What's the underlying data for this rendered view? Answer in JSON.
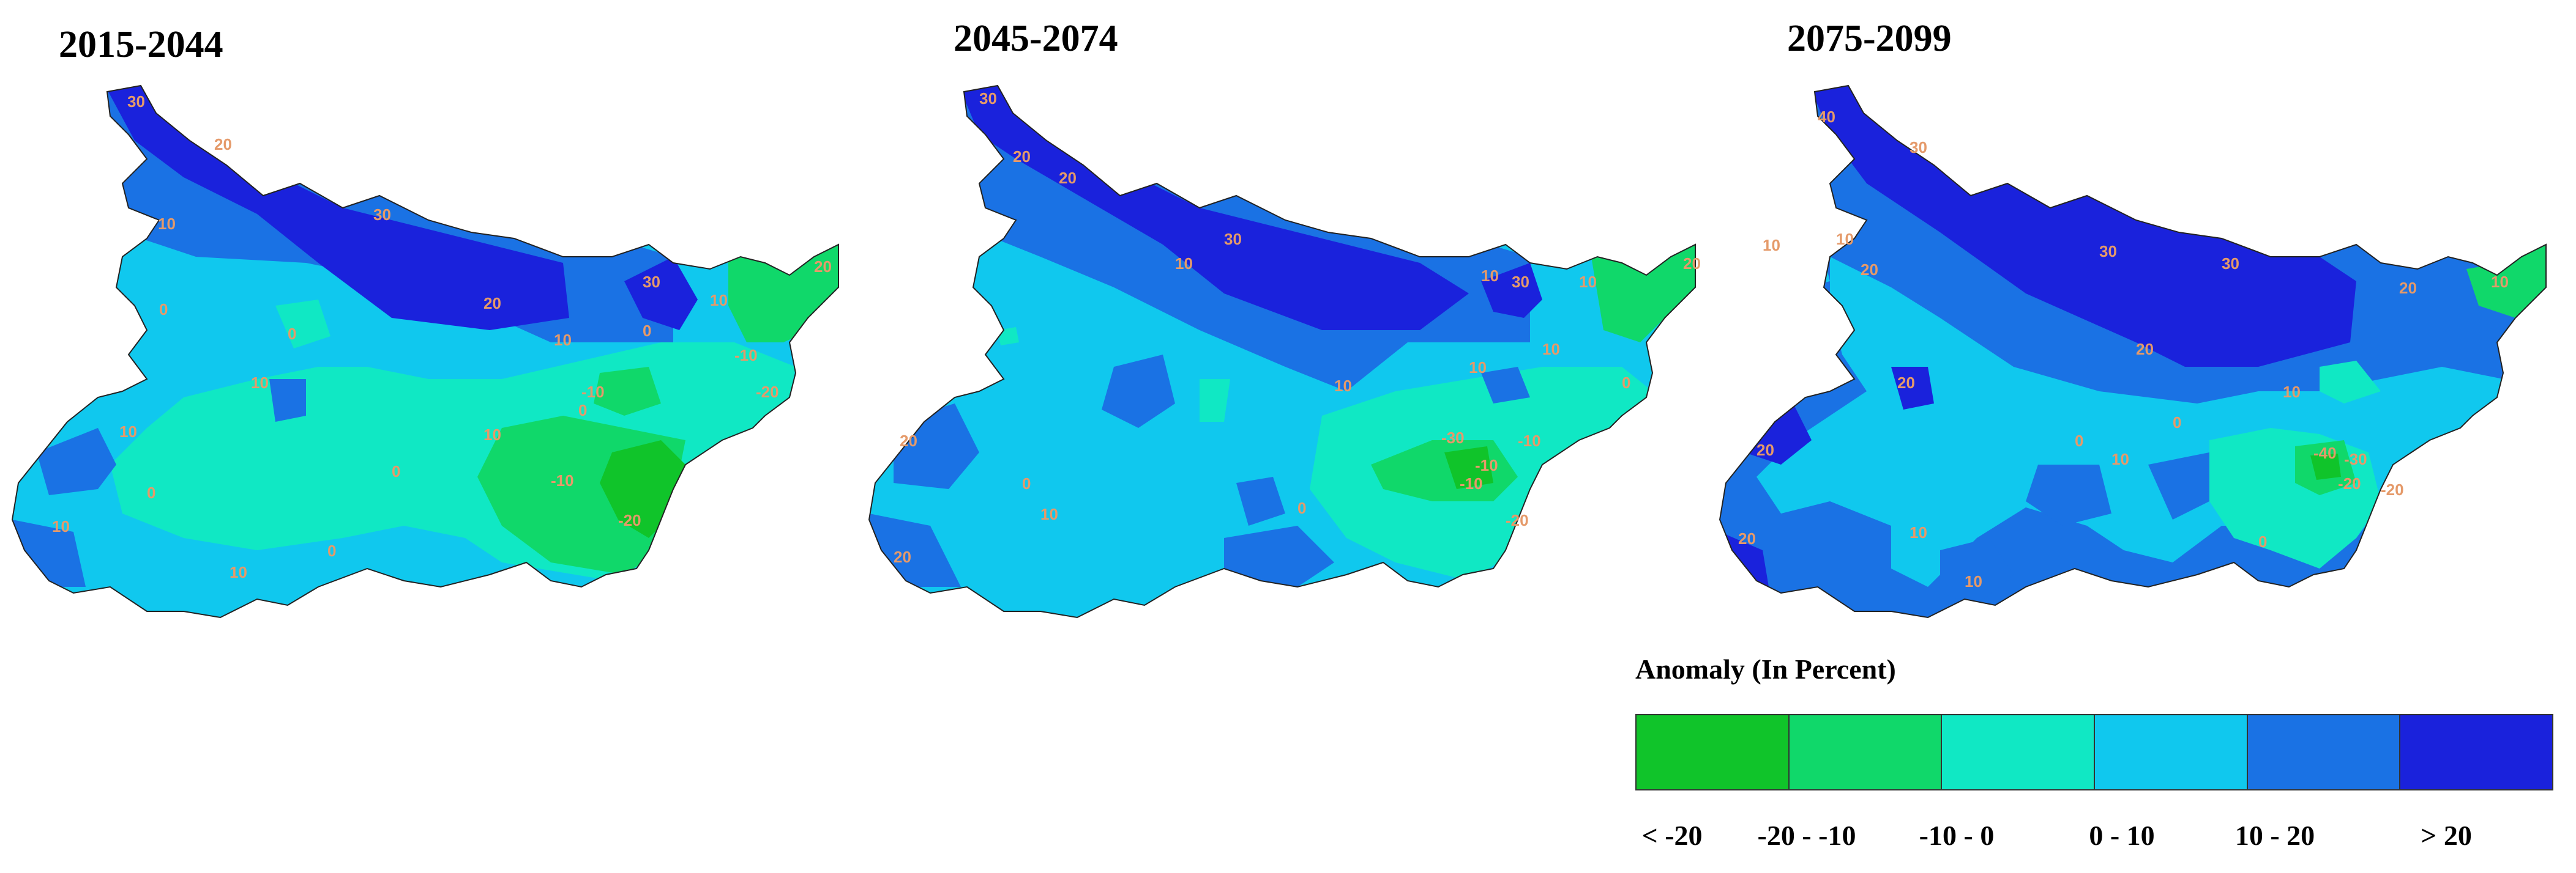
{
  "panels": [
    {
      "title": "2015-2044",
      "labels": [
        "30",
        "20",
        "30",
        "20",
        "10",
        "10",
        "10",
        "0",
        "0",
        "10",
        "0",
        "-10",
        "-10",
        "-20",
        "10",
        "0",
        "10",
        "0",
        "30",
        "20",
        "10",
        "-10",
        "0",
        "-20",
        "0",
        "10"
      ]
    },
    {
      "title": "2045-2074",
      "labels": [
        "30",
        "20",
        "20",
        "30",
        "10",
        "10",
        "0",
        "10",
        "0",
        "-10",
        "-30",
        "-10",
        "10",
        "10",
        "30",
        "20",
        "10",
        "-10",
        "0",
        "-20",
        "10",
        "20",
        "20"
      ]
    },
    {
      "title": "2075-2099",
      "labels": [
        "40",
        "30",
        "30",
        "20",
        "30",
        "10",
        "10",
        "20",
        "20",
        "10",
        "0",
        "0",
        "-20",
        "-40",
        "-30",
        "-20",
        "10",
        "20",
        "20",
        "20",
        "0",
        "10",
        "10",
        "10"
      ]
    }
  ],
  "legend": {
    "title": "Anomaly (In Percent)",
    "classes": [
      {
        "label": "< -20",
        "color": "#10c42a"
      },
      {
        "label": "-20 - -10",
        "color": "#10d86a"
      },
      {
        "label": "-10 - 0",
        "color": "#10e8c4"
      },
      {
        "label": "0 - 10",
        "color": "#10c8ee"
      },
      {
        "label": "10 - 20",
        "color": "#1a72e4"
      },
      {
        "label": "> 20",
        "color": "#1a22dc"
      }
    ]
  },
  "colors": {
    "lt_neg20": "#10c42a",
    "neg20_neg10": "#10d86a",
    "neg10_0": "#10e8c4",
    "0_10": "#10c8ee",
    "10_20": "#1a72e4",
    "gt20": "#1a22dc",
    "contour_label": "#e59a6a"
  }
}
